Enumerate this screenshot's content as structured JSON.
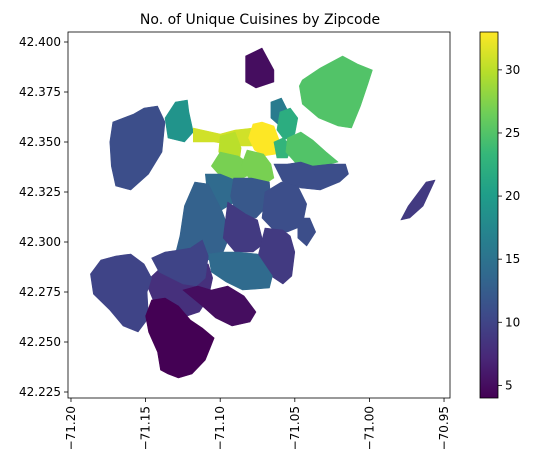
{
  "chart_data": {
    "type": "choropleth",
    "title": "No. of Unique Cuisines by Zipcode",
    "xlabel": "",
    "ylabel": "",
    "x_ticks": [
      "−71.20",
      "−71.15",
      "−71.10",
      "−71.05",
      "−71.00",
      "−70.95"
    ],
    "x_tick_values": [
      -71.2,
      -71.15,
      -71.1,
      -71.05,
      -71.0,
      -70.95
    ],
    "y_ticks": [
      "42.225",
      "42.250",
      "42.275",
      "42.300",
      "42.325",
      "42.350",
      "42.375",
      "42.400"
    ],
    "y_tick_values": [
      42.225,
      42.25,
      42.275,
      42.3,
      42.325,
      42.35,
      42.375,
      42.4
    ],
    "xlim": [
      -71.202,
      -70.946
    ],
    "ylim": [
      42.222,
      42.405
    ],
    "x_tick_rotation": "vertical",
    "colorbar": {
      "colormap": "viridis",
      "ticks": [
        "5",
        "10",
        "15",
        "20",
        "25",
        "30"
      ],
      "tick_values": [
        5,
        10,
        15,
        20,
        25,
        30
      ],
      "range": [
        4,
        33
      ]
    },
    "regions": [
      {
        "id": "charlestown",
        "value": 5,
        "polygon": [
          [
            -71.083,
            42.393
          ],
          [
            -71.072,
            42.397
          ],
          [
            -71.064,
            42.386
          ],
          [
            -71.064,
            42.38
          ],
          [
            -71.076,
            42.377
          ],
          [
            -71.083,
            42.38
          ]
        ]
      },
      {
        "id": "east-boston",
        "value": 25,
        "polygon": [
          [
            -71.045,
            42.381
          ],
          [
            -71.033,
            42.387
          ],
          [
            -71.018,
            42.393
          ],
          [
            -71.008,
            42.389
          ],
          [
            -70.998,
            42.386
          ],
          [
            -71.001,
            42.379
          ],
          [
            -71.006,
            42.368
          ],
          [
            -71.012,
            42.357
          ],
          [
            -71.021,
            42.358
          ],
          [
            -71.034,
            42.362
          ],
          [
            -71.045,
            42.369
          ],
          [
            -71.047,
            42.378
          ]
        ]
      },
      {
        "id": "winthrop-strip",
        "value": 9,
        "polygon": [
          [
            -70.962,
            42.33
          ],
          [
            -70.956,
            42.331
          ],
          [
            -70.964,
            42.318
          ],
          [
            -70.973,
            42.312
          ],
          [
            -70.979,
            42.311
          ],
          [
            -70.974,
            42.318
          ]
        ]
      },
      {
        "id": "allston-brighton",
        "value": 11,
        "polygon": [
          [
            -71.172,
            42.36
          ],
          [
            -71.158,
            42.364
          ],
          [
            -71.151,
            42.367
          ],
          [
            -71.142,
            42.368
          ],
          [
            -71.137,
            42.36
          ],
          [
            -71.139,
            42.345
          ],
          [
            -71.148,
            42.334
          ],
          [
            -71.16,
            42.326
          ],
          [
            -71.17,
            42.328
          ],
          [
            -71.173,
            42.338
          ],
          [
            -71.174,
            42.35
          ]
        ]
      },
      {
        "id": "allston",
        "value": 19,
        "polygon": [
          [
            -71.137,
            42.362
          ],
          [
            -71.13,
            42.37
          ],
          [
            -71.122,
            42.371
          ],
          [
            -71.121,
            42.365
          ],
          [
            -71.118,
            42.355
          ],
          [
            -71.124,
            42.35
          ],
          [
            -71.135,
            42.352
          ]
        ]
      },
      {
        "id": "back-bay-east",
        "value": 31,
        "polygon": [
          [
            -71.118,
            42.357
          ],
          [
            -71.1,
            42.354
          ],
          [
            -71.09,
            42.356
          ],
          [
            -71.078,
            42.357
          ],
          [
            -71.07,
            42.355
          ],
          [
            -71.072,
            42.348
          ],
          [
            -71.088,
            42.348
          ],
          [
            -71.104,
            42.35
          ],
          [
            -71.118,
            42.35
          ]
        ]
      },
      {
        "id": "back-bay",
        "value": 30,
        "polygon": [
          [
            -71.1,
            42.353
          ],
          [
            -71.09,
            42.355
          ],
          [
            -71.086,
            42.347
          ],
          [
            -71.087,
            42.341
          ],
          [
            -71.096,
            42.34
          ],
          [
            -71.101,
            42.345
          ]
        ]
      },
      {
        "id": "beacon-hill",
        "value": 33,
        "polygon": [
          [
            -71.078,
            42.359
          ],
          [
            -71.072,
            42.36
          ],
          [
            -71.064,
            42.358
          ],
          [
            -71.06,
            42.35
          ],
          [
            -71.062,
            42.344
          ],
          [
            -71.071,
            42.343
          ],
          [
            -71.077,
            42.346
          ],
          [
            -71.081,
            42.352
          ]
        ]
      },
      {
        "id": "north-end",
        "value": 16,
        "polygon": [
          [
            -71.066,
            42.37
          ],
          [
            -71.059,
            42.372
          ],
          [
            -71.055,
            42.366
          ],
          [
            -71.054,
            42.36
          ],
          [
            -71.06,
            42.358
          ],
          [
            -71.066,
            42.362
          ]
        ]
      },
      {
        "id": "downtown",
        "value": 22,
        "polygon": [
          [
            -71.06,
            42.365
          ],
          [
            -71.053,
            42.367
          ],
          [
            -71.048,
            42.362
          ],
          [
            -71.05,
            42.354
          ],
          [
            -71.057,
            42.351
          ],
          [
            -71.062,
            42.356
          ]
        ]
      },
      {
        "id": "fenway",
        "value": 27,
        "polygon": [
          [
            -71.1,
            42.345
          ],
          [
            -71.088,
            42.343
          ],
          [
            -71.082,
            42.34
          ],
          [
            -71.082,
            42.333
          ],
          [
            -71.09,
            42.33
          ],
          [
            -71.1,
            42.333
          ],
          [
            -71.106,
            42.338
          ]
        ]
      },
      {
        "id": "south-end",
        "value": 27,
        "polygon": [
          [
            -71.082,
            42.346
          ],
          [
            -71.071,
            42.344
          ],
          [
            -71.066,
            42.339
          ],
          [
            -71.064,
            42.332
          ],
          [
            -71.072,
            42.328
          ],
          [
            -71.08,
            42.331
          ],
          [
            -71.086,
            42.338
          ]
        ]
      },
      {
        "id": "leather-district",
        "value": 23,
        "polygon": [
          [
            -71.064,
            42.35
          ],
          [
            -71.058,
            42.352
          ],
          [
            -71.052,
            42.348
          ],
          [
            -71.055,
            42.342
          ],
          [
            -71.062,
            42.342
          ]
        ]
      },
      {
        "id": "seaport",
        "value": 25,
        "polygon": [
          [
            -71.055,
            42.352
          ],
          [
            -71.046,
            42.355
          ],
          [
            -71.038,
            42.351
          ],
          [
            -71.029,
            42.345
          ],
          [
            -71.021,
            42.34
          ],
          [
            -71.036,
            42.337
          ],
          [
            -71.046,
            42.334
          ],
          [
            -71.05,
            42.34
          ],
          [
            -71.056,
            42.345
          ]
        ]
      },
      {
        "id": "south-boston",
        "value": 11,
        "polygon": [
          [
            -71.064,
            42.339
          ],
          [
            -71.055,
            42.339
          ],
          [
            -71.046,
            42.34
          ],
          [
            -71.038,
            42.338
          ],
          [
            -71.026,
            42.339
          ],
          [
            -71.016,
            42.339
          ],
          [
            -71.014,
            42.334
          ],
          [
            -71.02,
            42.33
          ],
          [
            -71.033,
            42.326
          ],
          [
            -71.046,
            42.327
          ],
          [
            -71.058,
            42.33
          ]
        ]
      },
      {
        "id": "mission-hill",
        "value": 14,
        "polygon": [
          [
            -71.11,
            42.334
          ],
          [
            -71.1,
            42.334
          ],
          [
            -71.09,
            42.331
          ],
          [
            -71.088,
            42.321
          ],
          [
            -71.099,
            42.316
          ],
          [
            -71.108,
            42.32
          ]
        ]
      },
      {
        "id": "roxbury",
        "value": 12,
        "polygon": [
          [
            -71.091,
            42.332
          ],
          [
            -71.079,
            42.332
          ],
          [
            -71.067,
            42.33
          ],
          [
            -71.066,
            42.32
          ],
          [
            -71.076,
            42.312
          ],
          [
            -71.089,
            42.313
          ],
          [
            -71.093,
            42.323
          ]
        ]
      },
      {
        "id": "jamaica-plain",
        "value": 13,
        "polygon": [
          [
            -71.117,
            42.33
          ],
          [
            -71.108,
            42.329
          ],
          [
            -71.099,
            42.316
          ],
          [
            -71.093,
            42.304
          ],
          [
            -71.098,
            42.295
          ],
          [
            -71.108,
            42.291
          ],
          [
            -71.118,
            42.288
          ],
          [
            -71.124,
            42.288
          ],
          [
            -71.131,
            42.291
          ],
          [
            -71.127,
            42.303
          ],
          [
            -71.124,
            42.318
          ]
        ]
      },
      {
        "id": "roxbury-south",
        "value": 9,
        "polygon": [
          [
            -71.095,
            42.32
          ],
          [
            -71.083,
            42.314
          ],
          [
            -71.075,
            42.311
          ],
          [
            -71.071,
            42.299
          ],
          [
            -71.078,
            42.295
          ],
          [
            -71.09,
            42.295
          ],
          [
            -71.098,
            42.302
          ]
        ]
      },
      {
        "id": "dorchester-north",
        "value": 11,
        "polygon": [
          [
            -71.07,
            42.325
          ],
          [
            -71.059,
            42.33
          ],
          [
            -71.048,
            42.328
          ],
          [
            -71.042,
            42.319
          ],
          [
            -71.045,
            42.308
          ],
          [
            -71.055,
            42.305
          ],
          [
            -71.063,
            42.305
          ],
          [
            -71.072,
            42.312
          ]
        ]
      },
      {
        "id": "dorchester-east",
        "value": 11,
        "polygon": [
          [
            -71.048,
            42.312
          ],
          [
            -71.04,
            42.312
          ],
          [
            -71.036,
            42.305
          ],
          [
            -71.042,
            42.298
          ],
          [
            -71.048,
            42.302
          ]
        ]
      },
      {
        "id": "dorchester-south",
        "value": 9,
        "polygon": [
          [
            -71.07,
            42.307
          ],
          [
            -71.058,
            42.306
          ],
          [
            -71.053,
            42.303
          ],
          [
            -71.05,
            42.295
          ],
          [
            -71.052,
            42.283
          ],
          [
            -71.058,
            42.279
          ],
          [
            -71.066,
            42.283
          ],
          [
            -71.075,
            42.292
          ]
        ]
      },
      {
        "id": "mattapan",
        "value": 14,
        "polygon": [
          [
            -71.108,
            42.294
          ],
          [
            -71.098,
            42.295
          ],
          [
            -71.088,
            42.295
          ],
          [
            -71.075,
            42.294
          ],
          [
            -71.065,
            42.283
          ],
          [
            -71.067,
            42.277
          ],
          [
            -71.085,
            42.276
          ],
          [
            -71.096,
            42.28
          ],
          [
            -71.106,
            42.285
          ]
        ]
      },
      {
        "id": "roslindale",
        "value": 8,
        "polygon": [
          [
            -71.131,
            42.292
          ],
          [
            -71.118,
            42.289
          ],
          [
            -71.108,
            42.289
          ],
          [
            -71.105,
            42.282
          ],
          [
            -71.108,
            42.272
          ],
          [
            -71.114,
            42.265
          ],
          [
            -71.122,
            42.263
          ],
          [
            -71.132,
            42.267
          ],
          [
            -71.145,
            42.271
          ],
          [
            -71.15,
            42.28
          ],
          [
            -71.14,
            42.287
          ]
        ]
      },
      {
        "id": "west-roxbury",
        "value": 10,
        "polygon": [
          [
            -71.146,
            42.292
          ],
          [
            -71.137,
            42.295
          ],
          [
            -71.128,
            42.296
          ],
          [
            -71.12,
            42.297
          ],
          [
            -71.112,
            42.301
          ],
          [
            -71.108,
            42.293
          ],
          [
            -71.11,
            42.282
          ],
          [
            -71.116,
            42.278
          ],
          [
            -71.125,
            42.279
          ],
          [
            -71.133,
            42.282
          ],
          [
            -71.141,
            42.285
          ]
        ]
      },
      {
        "id": "hyde-park",
        "value": 5,
        "polygon": [
          [
            -71.125,
            42.276
          ],
          [
            -71.115,
            42.278
          ],
          [
            -71.106,
            42.276
          ],
          [
            -71.095,
            42.278
          ],
          [
            -71.084,
            42.273
          ],
          [
            -71.076,
            42.265
          ],
          [
            -71.08,
            42.26
          ],
          [
            -71.092,
            42.258
          ],
          [
            -71.103,
            42.262
          ],
          [
            -71.112,
            42.268
          ]
        ]
      },
      {
        "id": "west-roxbury-south",
        "value": 10,
        "polygon": [
          [
            -71.187,
            42.284
          ],
          [
            -71.18,
            42.291
          ],
          [
            -71.17,
            42.293
          ],
          [
            -71.16,
            42.294
          ],
          [
            -71.151,
            42.289
          ],
          [
            -71.146,
            42.282
          ],
          [
            -71.149,
            42.275
          ],
          [
            -71.148,
            42.262
          ],
          [
            -71.155,
            42.255
          ],
          [
            -71.165,
            42.258
          ],
          [
            -71.174,
            42.266
          ],
          [
            -71.185,
            42.274
          ]
        ]
      },
      {
        "id": "hyde-park-south",
        "value": 4,
        "polygon": [
          [
            -71.146,
            42.271
          ],
          [
            -71.137,
            42.272
          ],
          [
            -71.128,
            42.268
          ],
          [
            -71.12,
            42.261
          ],
          [
            -71.112,
            42.257
          ],
          [
            -71.104,
            42.252
          ],
          [
            -71.11,
            42.241
          ],
          [
            -71.119,
            42.234
          ],
          [
            -71.128,
            42.232
          ],
          [
            -71.135,
            42.234
          ],
          [
            -71.14,
            42.236
          ],
          [
            -71.142,
            42.245
          ],
          [
            -71.148,
            42.255
          ],
          [
            -71.15,
            42.263
          ]
        ]
      }
    ]
  }
}
